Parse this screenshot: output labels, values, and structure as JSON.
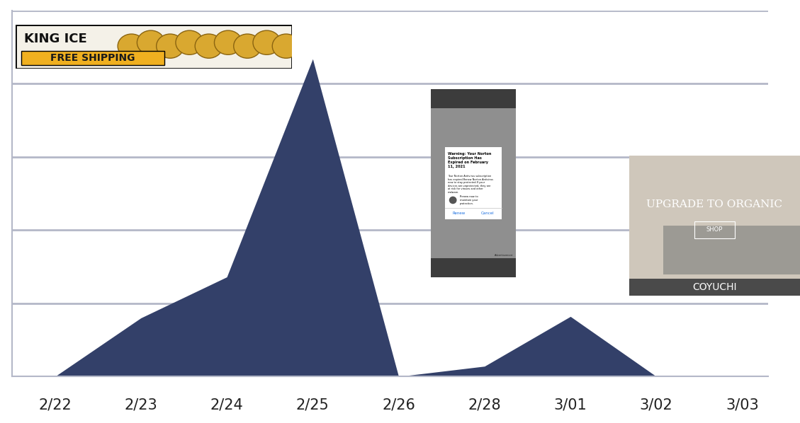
{
  "chart_data": {
    "type": "area",
    "categories": [
      "2/22",
      "2/23",
      "2/24",
      "2/25",
      "2/26",
      "2/28",
      "3/01",
      "3/02",
      "3/03"
    ],
    "values": [
      0,
      0.8,
      1.36,
      4.34,
      0,
      0.14,
      0.82,
      0,
      0
    ],
    "color": "#334069",
    "ylim": [
      0,
      5
    ],
    "yticks": [
      0,
      1,
      2,
      3,
      4,
      5
    ],
    "grid": true,
    "tick_labels": "x",
    "annotations": [
      "KING ICE",
      "FREE SHIPPING",
      "Warning: Your Norton Subscription Has Expired on February 11, 2021",
      "Your Norton Antivirus subscription has expired.Renew Norton Antivirus now to stay protected.If your devices are unprotected, they are at risk for viruses and other malware.",
      "Renew now to maintain your protection.",
      "Renew",
      "Cancel",
      "Advertisement",
      "UPGRADE TO ORGANIC",
      "SHOP",
      "COYUCHI"
    ]
  }
}
